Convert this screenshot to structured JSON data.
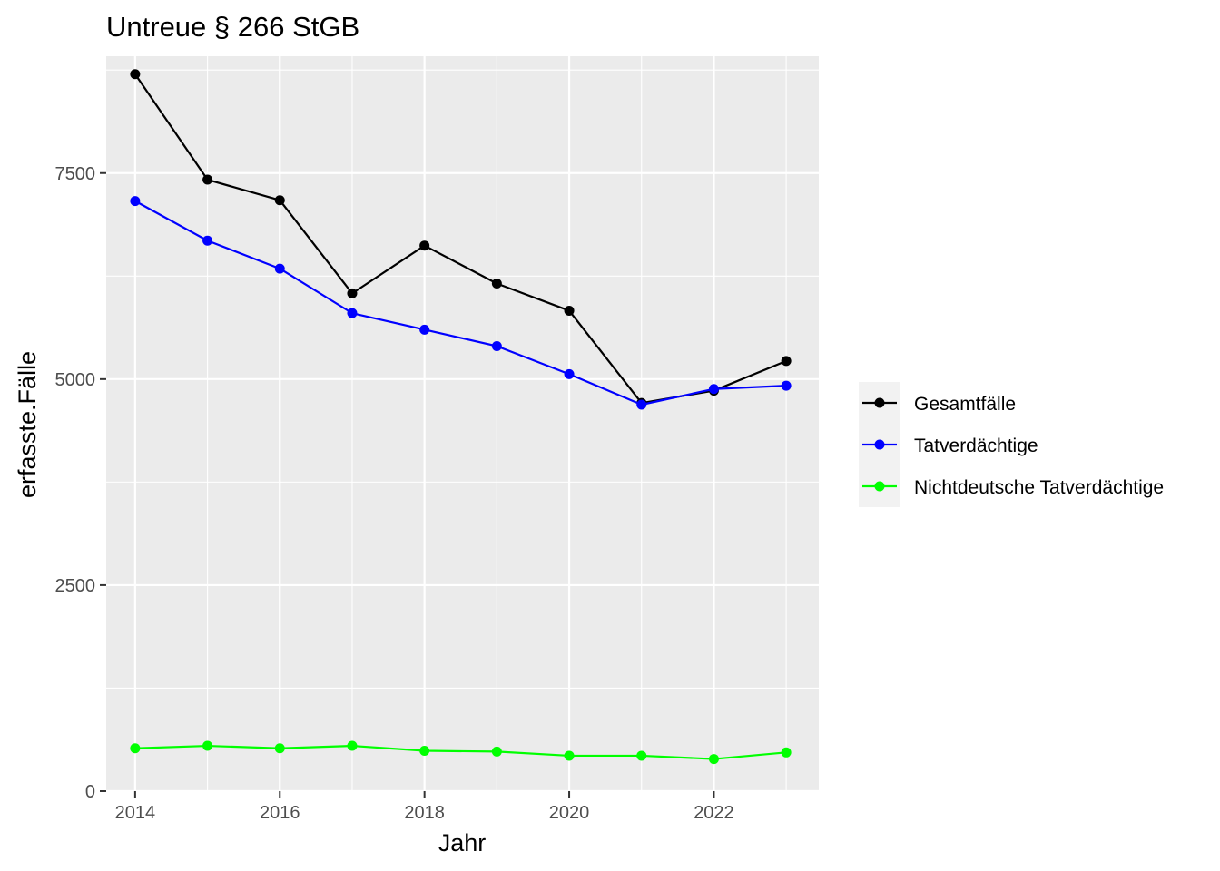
{
  "chart_data": {
    "type": "line",
    "title": "Untreue § 266 StGB",
    "xlabel": "Jahr",
    "ylabel": "erfasste.Fälle",
    "x": [
      2014,
      2015,
      2016,
      2017,
      2018,
      2019,
      2020,
      2021,
      2022,
      2023
    ],
    "xlim": [
      2013.6,
      2023.45
    ],
    "ylim": [
      0,
      8700
    ],
    "x_ticks": [
      2014,
      2016,
      2018,
      2020,
      2022
    ],
    "x_tick_labels": [
      "2014",
      "2016",
      "2018",
      "2020",
      "2022"
    ],
    "y_ticks": [
      0,
      2500,
      5000,
      7500
    ],
    "y_tick_labels": [
      "0",
      "2500",
      "5000",
      "7500"
    ],
    "grid": true,
    "legend_position": "right",
    "series": [
      {
        "name": "Gesamtfälle",
        "color": "#000000",
        "values": [
          8700,
          7420,
          7170,
          6040,
          6620,
          6160,
          5830,
          4710,
          4860,
          5220
        ]
      },
      {
        "name": "Tatverdächtige",
        "color": "#0000ff",
        "values": [
          7160,
          6680,
          6340,
          5800,
          5600,
          5400,
          5060,
          4690,
          4880,
          4920
        ]
      },
      {
        "name": "Nichtdeutsche Tatverdächtige",
        "color": "#00ff00",
        "values": [
          520,
          550,
          520,
          550,
          490,
          480,
          430,
          430,
          390,
          470
        ]
      }
    ]
  }
}
